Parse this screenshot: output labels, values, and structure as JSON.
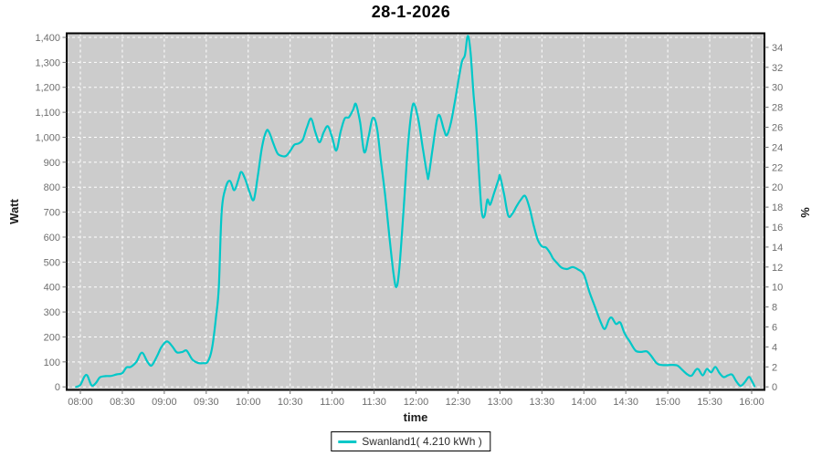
{
  "title": "28-1-2026",
  "colors": {
    "series": "#00c8c8",
    "plot_background": "#cccccc",
    "grid": "#ffffff",
    "tick": "#6e6e6e",
    "plot_border": "#000000"
  },
  "legend": {
    "label": "Swanland1( 4.210 kWh )"
  },
  "chart_data": {
    "type": "line",
    "title": "28-1-2026",
    "xlabel": "time",
    "ylabel_left": "Watt",
    "ylabel_right": "%",
    "grid": "on, white dashed",
    "legend_position": "bottom-center",
    "x_ticks": [
      "08:00",
      "08:30",
      "09:00",
      "09:30",
      "10:00",
      "10:30",
      "11:00",
      "11:30",
      "12:00",
      "12:30",
      "13:00",
      "13:30",
      "14:00",
      "14:30",
      "15:00",
      "15:30",
      "16:00"
    ],
    "y_left_ticks": [
      "0",
      "100",
      "200",
      "300",
      "400",
      "500",
      "600",
      "700",
      "800",
      "900",
      "1,000",
      "1,100",
      "1,200",
      "1,300",
      "1,400"
    ],
    "y_left_range": [
      0,
      1400
    ],
    "y_right_ticks": [
      0,
      2,
      4,
      6,
      8,
      10,
      12,
      14,
      16,
      18,
      20,
      22,
      24,
      26,
      28,
      30,
      32,
      34
    ],
    "y_right_range": [
      0,
      35
    ],
    "x_range": [
      "07:50",
      "16:09"
    ],
    "series": [
      {
        "name": "Swanland1",
        "energy_label": "4.210 kWh",
        "color": "#00c8c8",
        "points": [
          [
            "07:57",
            0
          ],
          [
            "08:00",
            8
          ],
          [
            "08:03",
            42
          ],
          [
            "08:05",
            45
          ],
          [
            "08:08",
            6
          ],
          [
            "08:11",
            15
          ],
          [
            "08:14",
            38
          ],
          [
            "08:18",
            43
          ],
          [
            "08:22",
            44
          ],
          [
            "08:26",
            50
          ],
          [
            "08:30",
            55
          ],
          [
            "08:33",
            78
          ],
          [
            "08:36",
            80
          ],
          [
            "08:40",
            100
          ],
          [
            "08:44",
            137
          ],
          [
            "08:48",
            100
          ],
          [
            "08:51",
            86
          ],
          [
            "08:55",
            125
          ],
          [
            "08:58",
            160
          ],
          [
            "09:02",
            182
          ],
          [
            "09:06",
            160
          ],
          [
            "09:09",
            138
          ],
          [
            "09:13",
            140
          ],
          [
            "09:16",
            145
          ],
          [
            "09:20",
            110
          ],
          [
            "09:24",
            96
          ],
          [
            "09:28",
            95
          ],
          [
            "09:31",
            100
          ],
          [
            "09:34",
            150
          ],
          [
            "09:37",
            280
          ],
          [
            "09:39",
            400
          ],
          [
            "09:41",
            700
          ],
          [
            "09:44",
            800
          ],
          [
            "09:47",
            825
          ],
          [
            "09:50",
            788
          ],
          [
            "09:53",
            830
          ],
          [
            "09:55",
            861
          ],
          [
            "09:58",
            830
          ],
          [
            "10:01",
            780
          ],
          [
            "10:04",
            750
          ],
          [
            "10:07",
            850
          ],
          [
            "10:10",
            965
          ],
          [
            "10:13",
            1025
          ],
          [
            "10:15",
            1020
          ],
          [
            "10:18",
            975
          ],
          [
            "10:21",
            935
          ],
          [
            "10:24",
            925
          ],
          [
            "10:27",
            925
          ],
          [
            "10:30",
            945
          ],
          [
            "10:33",
            970
          ],
          [
            "10:36",
            975
          ],
          [
            "10:39",
            990
          ],
          [
            "10:42",
            1040
          ],
          [
            "10:45",
            1075
          ],
          [
            "10:48",
            1020
          ],
          [
            "10:51",
            980
          ],
          [
            "10:54",
            1020
          ],
          [
            "10:57",
            1044
          ],
          [
            "11:00",
            1000
          ],
          [
            "11:03",
            947
          ],
          [
            "11:06",
            1020
          ],
          [
            "11:09",
            1075
          ],
          [
            "11:12",
            1080
          ],
          [
            "11:15",
            1110
          ],
          [
            "11:17",
            1133
          ],
          [
            "11:20",
            1060
          ],
          [
            "11:23",
            940
          ],
          [
            "11:26",
            1000
          ],
          [
            "11:29",
            1077
          ],
          [
            "11:32",
            1040
          ],
          [
            "11:35",
            900
          ],
          [
            "11:38",
            764
          ],
          [
            "11:41",
            600
          ],
          [
            "11:44",
            450
          ],
          [
            "11:46",
            400
          ],
          [
            "11:48",
            470
          ],
          [
            "11:51",
            700
          ],
          [
            "11:54",
            950
          ],
          [
            "11:57",
            1110
          ],
          [
            "11:59",
            1130
          ],
          [
            "12:02",
            1060
          ],
          [
            "12:05",
            950
          ],
          [
            "12:08",
            850
          ],
          [
            "12:09",
            843
          ],
          [
            "12:12",
            960
          ],
          [
            "12:15",
            1070
          ],
          [
            "12:17",
            1086
          ],
          [
            "12:20",
            1030
          ],
          [
            "12:22",
            1008
          ],
          [
            "12:25",
            1060
          ],
          [
            "12:28",
            1150
          ],
          [
            "12:31",
            1250
          ],
          [
            "12:33",
            1306
          ],
          [
            "12:35",
            1330
          ],
          [
            "12:37",
            1406
          ],
          [
            "12:39",
            1340
          ],
          [
            "12:41",
            1180
          ],
          [
            "12:43",
            1050
          ],
          [
            "12:45",
            860
          ],
          [
            "12:47",
            700
          ],
          [
            "12:49",
            685
          ],
          [
            "12:51",
            750
          ],
          [
            "12:53",
            730
          ],
          [
            "12:56",
            780
          ],
          [
            "12:59",
            830
          ],
          [
            "13:00",
            845
          ],
          [
            "13:03",
            770
          ],
          [
            "13:06",
            685
          ],
          [
            "13:09",
            695
          ],
          [
            "13:12",
            725
          ],
          [
            "13:15",
            750
          ],
          [
            "13:18",
            765
          ],
          [
            "13:21",
            720
          ],
          [
            "13:24",
            650
          ],
          [
            "13:27",
            590
          ],
          [
            "13:30",
            563
          ],
          [
            "13:33",
            558
          ],
          [
            "13:36",
            535
          ],
          [
            "13:38",
            514
          ],
          [
            "13:41",
            495
          ],
          [
            "13:44",
            478
          ],
          [
            "13:48",
            472
          ],
          [
            "13:52",
            480
          ],
          [
            "13:56",
            470
          ],
          [
            "14:00",
            450
          ],
          [
            "14:04",
            380
          ],
          [
            "14:08",
            320
          ],
          [
            "14:12",
            260
          ],
          [
            "14:15",
            232
          ],
          [
            "14:18",
            270
          ],
          [
            "14:20",
            277
          ],
          [
            "14:23",
            252
          ],
          [
            "14:26",
            258
          ],
          [
            "14:29",
            216
          ],
          [
            "14:33",
            180
          ],
          [
            "14:37",
            145
          ],
          [
            "14:41",
            140
          ],
          [
            "14:45",
            142
          ],
          [
            "14:48",
            125
          ],
          [
            "14:52",
            95
          ],
          [
            "14:55",
            88
          ],
          [
            "14:59",
            87
          ],
          [
            "15:03",
            88
          ],
          [
            "15:07",
            85
          ],
          [
            "15:10",
            70
          ],
          [
            "15:14",
            50
          ],
          [
            "15:17",
            45
          ],
          [
            "15:20",
            68
          ],
          [
            "15:22",
            70
          ],
          [
            "15:25",
            46
          ],
          [
            "15:28",
            72
          ],
          [
            "15:31",
            58
          ],
          [
            "15:34",
            80
          ],
          [
            "15:37",
            55
          ],
          [
            "15:40",
            39
          ],
          [
            "15:43",
            46
          ],
          [
            "15:46",
            49
          ],
          [
            "15:49",
            22
          ],
          [
            "15:52",
            4
          ],
          [
            "15:55",
            18
          ],
          [
            "15:58",
            40
          ],
          [
            "16:00",
            25
          ],
          [
            "16:02",
            3
          ]
        ]
      }
    ]
  }
}
